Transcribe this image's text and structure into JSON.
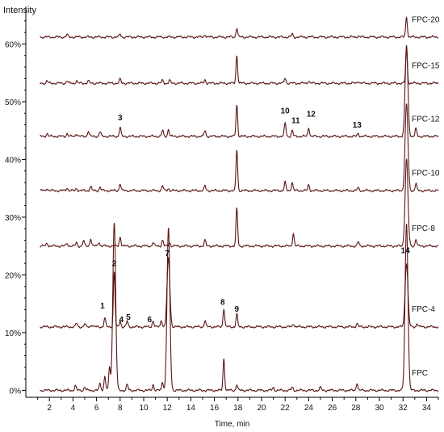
{
  "chart_data": {
    "type": "line",
    "title": "",
    "xlabel": "Time, min",
    "ylabel": "Intensity",
    "xlim": [
      0,
      35
    ],
    "ylim": [
      0,
      66
    ],
    "x_ticks": [
      2,
      4,
      6,
      8,
      10,
      12,
      14,
      16,
      18,
      20,
      22,
      24,
      26,
      28,
      30,
      32,
      34
    ],
    "y_ticks": [
      {
        "value": 0,
        "label": "0%"
      },
      {
        "value": 10,
        "label": "10%"
      },
      {
        "value": 20,
        "label": "20%"
      },
      {
        "value": 30,
        "label": "30%"
      },
      {
        "value": 40,
        "label": "40%"
      },
      {
        "value": 50,
        "label": "50%"
      },
      {
        "value": 60,
        "label": "60%"
      }
    ],
    "line_color": "#5a1515",
    "series": [
      {
        "name": "FPC",
        "baseline": 0,
        "peaks": [
          [
            4.2,
            0.8
          ],
          [
            5.0,
            0.6
          ],
          [
            6.3,
            1.2
          ],
          [
            6.7,
            2.5
          ],
          [
            7.1,
            4.0
          ],
          [
            7.5,
            29.0
          ],
          [
            8.6,
            1.0
          ],
          [
            10.8,
            1.0
          ],
          [
            11.6,
            1.5
          ],
          [
            12.1,
            28.0
          ],
          [
            16.8,
            5.5
          ],
          [
            17.9,
            1.0
          ],
          [
            21.0,
            0.5
          ],
          [
            22.6,
            0.5
          ],
          [
            25.0,
            0.5
          ],
          [
            28.1,
            1.3
          ],
          [
            32.3,
            29.0
          ]
        ]
      },
      {
        "name": "FPC-4",
        "baseline": 11,
        "peaks": [
          [
            4.3,
            0.6
          ],
          [
            5.0,
            0.5
          ],
          [
            5.6,
            0.4
          ],
          [
            6.7,
            1.5
          ],
          [
            7.5,
            9.5
          ],
          [
            8.0,
            1.0
          ],
          [
            8.6,
            1.0
          ],
          [
            10.8,
            1.1
          ],
          [
            11.5,
            1.2
          ],
          [
            12.1,
            11.8
          ],
          [
            15.2,
            1.1
          ],
          [
            16.8,
            3.2
          ],
          [
            17.9,
            2.2
          ],
          [
            22.7,
            0.6
          ],
          [
            28.1,
            0.6
          ],
          [
            32.3,
            11.0
          ],
          [
            33.2,
            0.6
          ]
        ]
      },
      {
        "name": "FPC-8",
        "baseline": 25,
        "peaks": [
          [
            1.8,
            0.5
          ],
          [
            3.5,
            0.5
          ],
          [
            4.3,
            0.6
          ],
          [
            4.9,
            0.9
          ],
          [
            5.5,
            1.3
          ],
          [
            6.2,
            0.7
          ],
          [
            8.0,
            1.6
          ],
          [
            10.8,
            0.6
          ],
          [
            11.6,
            1.0
          ],
          [
            12.2,
            0.6
          ],
          [
            15.2,
            1.0
          ],
          [
            17.9,
            6.5
          ],
          [
            22.7,
            2.2
          ],
          [
            28.2,
            0.7
          ],
          [
            32.3,
            15.0
          ],
          [
            33.1,
            1.2
          ]
        ]
      },
      {
        "name": "FPC-10",
        "baseline": 34.6,
        "peaks": [
          [
            1.8,
            0.4
          ],
          [
            3.5,
            0.5
          ],
          [
            4.3,
            0.4
          ],
          [
            5.5,
            0.7
          ],
          [
            6.3,
            0.6
          ],
          [
            8.0,
            1.2
          ],
          [
            11.6,
            0.8
          ],
          [
            12.1,
            0.4
          ],
          [
            15.2,
            0.8
          ],
          [
            17.9,
            7.0
          ],
          [
            22.0,
            1.4
          ],
          [
            22.6,
            1.4
          ],
          [
            24.0,
            1.0
          ],
          [
            28.2,
            0.5
          ],
          [
            32.3,
            15.0
          ],
          [
            33.1,
            1.2
          ]
        ]
      },
      {
        "name": "FPC-12",
        "baseline": 44,
        "peaks": [
          [
            1.8,
            0.5
          ],
          [
            3.5,
            0.5
          ],
          [
            4.3,
            0.5
          ],
          [
            5.3,
            0.9
          ],
          [
            6.3,
            0.8
          ],
          [
            8.0,
            1.5
          ],
          [
            11.6,
            1.0
          ],
          [
            12.1,
            1.2
          ],
          [
            15.2,
            1.0
          ],
          [
            17.9,
            5.5
          ],
          [
            22.0,
            2.3
          ],
          [
            22.6,
            1.0
          ],
          [
            24.0,
            1.5
          ],
          [
            28.2,
            0.5
          ],
          [
            32.3,
            15.0
          ],
          [
            33.1,
            1.3
          ]
        ]
      },
      {
        "name": "FPC-15",
        "baseline": 53.2,
        "peaks": [
          [
            1.8,
            0.4
          ],
          [
            3.5,
            0.4
          ],
          [
            4.3,
            0.4
          ],
          [
            5.3,
            0.4
          ],
          [
            8.0,
            0.7
          ],
          [
            11.6,
            0.5
          ],
          [
            12.2,
            0.5
          ],
          [
            15.2,
            0.6
          ],
          [
            17.9,
            4.8
          ],
          [
            22.0,
            0.9
          ],
          [
            24.0,
            0.4
          ],
          [
            28.2,
            0.4
          ],
          [
            32.3,
            6.5
          ]
        ]
      },
      {
        "name": "FPC-20",
        "baseline": 61.2,
        "peaks": [
          [
            3.5,
            0.4
          ],
          [
            8.0,
            0.5
          ],
          [
            15.2,
            0.4
          ],
          [
            17.9,
            1.6
          ],
          [
            22.6,
            0.5
          ],
          [
            28.2,
            0.2
          ],
          [
            32.3,
            3.5
          ]
        ]
      }
    ],
    "peak_labels": [
      {
        "text": "1",
        "x": 6.5,
        "y": 14.2
      },
      {
        "text": "2",
        "x": 7.5,
        "y": 21.5
      },
      {
        "text": "3",
        "x": 8.0,
        "y": 46.8
      },
      {
        "text": "4",
        "x": 8.1,
        "y": 11.8
      },
      {
        "text": "5",
        "x": 8.7,
        "y": 12.2
      },
      {
        "text": "6",
        "x": 10.5,
        "y": 11.8
      },
      {
        "text": "7",
        "x": 12.0,
        "y": 23.3
      },
      {
        "text": "8",
        "x": 16.7,
        "y": 14.8
      },
      {
        "text": "9",
        "x": 17.9,
        "y": 13.6
      },
      {
        "text": "10",
        "x": 22.0,
        "y": 48.0
      },
      {
        "text": "11",
        "x": 22.9,
        "y": 46.3
      },
      {
        "text": "12",
        "x": 24.2,
        "y": 47.4
      },
      {
        "text": "13",
        "x": 28.1,
        "y": 45.5
      },
      {
        "text": "14",
        "x": 32.2,
        "y": 23.8
      }
    ]
  }
}
